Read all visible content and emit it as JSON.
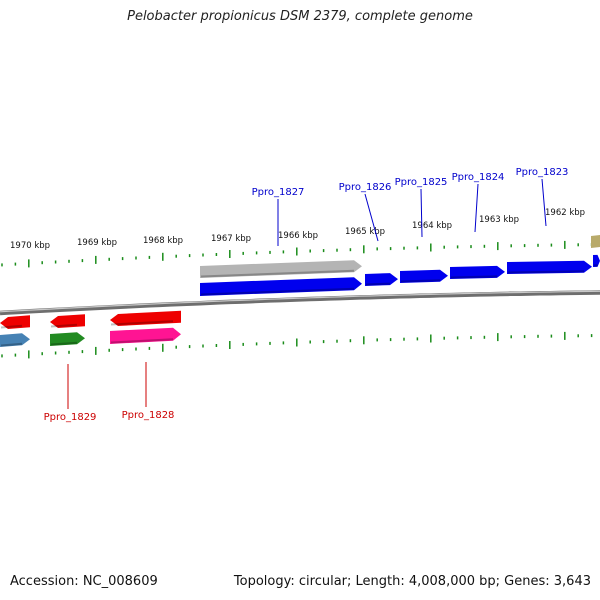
{
  "header": {
    "title": "Pelobacter propionicus DSM 2379, complete genome"
  },
  "footer": {
    "accession": "Accession: NC_008609",
    "summary": "Topology: circular; Length: 4,008,000 bp; Genes: 3,643"
  },
  "scale": {
    "ticks": [
      "1970 kbp",
      "1969 kbp",
      "1968 kbp",
      "1967 kbp",
      "1966 kbp",
      "1965 kbp",
      "1964 kbp",
      "1963 kbp",
      "1962 kbp"
    ]
  },
  "genes": {
    "forward_labels": [
      "Ppro_1827",
      "Ppro_1826",
      "Ppro_1825",
      "Ppro_1824",
      "Ppro_1823"
    ],
    "reverse_labels": [
      "Ppro_1829",
      "Ppro_1828"
    ]
  },
  "colors": {
    "forward_label": "#0000cc",
    "reverse_label": "#cc0000",
    "tick": "#1a8c1a",
    "backbone": "#888888",
    "cds_blue": "#0000ee",
    "cds_red": "#ee0000",
    "cds_green": "#228b22",
    "cds_steelblue": "#4682b4",
    "cds_magenta": "#ff1493",
    "cds_gray": "#b4b4b4",
    "cds_khaki": "#b8aa6a"
  }
}
